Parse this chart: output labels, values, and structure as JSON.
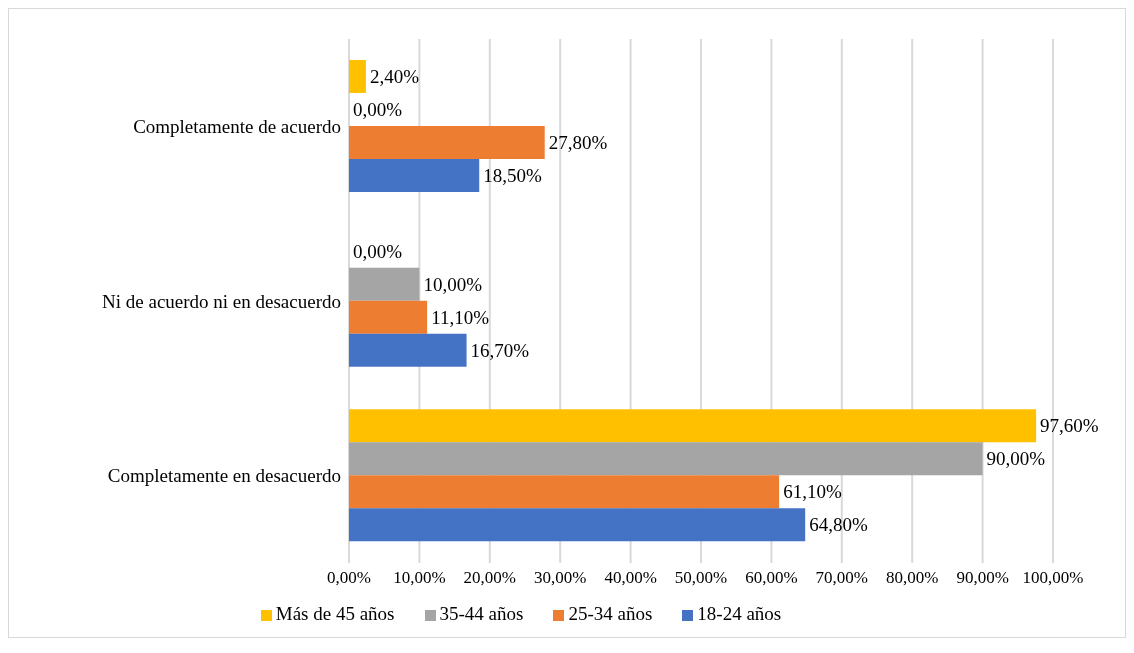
{
  "chart_data": {
    "type": "bar",
    "orientation": "horizontal",
    "categories": [
      "Completamente de acuerdo",
      "Ni de acuerdo ni en desacuerdo",
      "Completamente en desacuerdo"
    ],
    "series": [
      {
        "name": "Más de 45 años",
        "color": "#ffc000",
        "values": [
          2.4,
          0,
          97.6
        ],
        "value_labels": [
          "2,40%",
          "0,00%",
          "97,60%"
        ]
      },
      {
        "name": "35-44 años",
        "color": "#a5a5a5",
        "values": [
          0,
          10,
          90
        ],
        "value_labels": [
          "0,00%",
          "10,00%",
          "90,00%"
        ]
      },
      {
        "name": "25-34 años",
        "color": "#ed7d31",
        "values": [
          27.8,
          11.1,
          61.1
        ],
        "value_labels": [
          "27,80%",
          "11,10%",
          "61,10%"
        ]
      },
      {
        "name": "18-24 años",
        "color": "#4472c4",
        "values": [
          18.5,
          16.7,
          64.8
        ],
        "value_labels": [
          "18,50%",
          "16,70%",
          "64,80%"
        ]
      }
    ],
    "xlim": [
      0,
      100
    ],
    "xticks": [
      {
        "value": 0,
        "label": "0,00%"
      },
      {
        "value": 10,
        "label": "10,00%"
      },
      {
        "value": 20,
        "label": "20,00%"
      },
      {
        "value": 30,
        "label": "30,00%"
      },
      {
        "value": 40,
        "label": "40,00%"
      },
      {
        "value": 50,
        "label": "50,00%"
      },
      {
        "value": 60,
        "label": "60,00%"
      },
      {
        "value": 70,
        "label": "70,00%"
      },
      {
        "value": 80,
        "label": "80,00%"
      },
      {
        "value": 90,
        "label": "90,00%"
      },
      {
        "value": 100,
        "label": "100,00%"
      }
    ],
    "grid": "x",
    "legend": "bottom"
  }
}
